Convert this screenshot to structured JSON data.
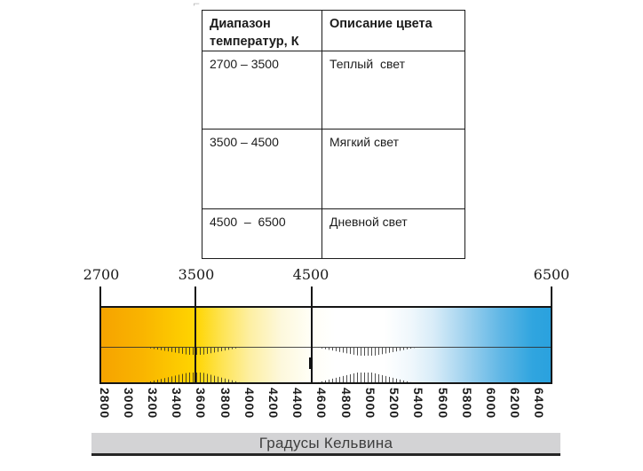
{
  "table": {
    "header": {
      "col1": "Диапазон температур, К",
      "col2": "Описание цвета"
    },
    "rows": [
      {
        "range": "2700 – 3500",
        "description": "Теплый  свет"
      },
      {
        "range": "3500 – 4500",
        "description": "Мягкий свет"
      },
      {
        "range": "4500  –  6500",
        "description": "Дневной свет"
      }
    ]
  },
  "scale": {
    "top_labels": [
      "2700",
      "3500",
      "4500",
      "6500"
    ],
    "bottom_labels": [
      "2800",
      "3000",
      "3200",
      "3400",
      "3600",
      "3800",
      "4000",
      "4200",
      "4400",
      "4600",
      "4800",
      "5000",
      "5200",
      "5400",
      "5600",
      "5800",
      "6000",
      "6200",
      "6400"
    ],
    "footer_label": "Градусы Кельвина"
  },
  "artifact_mark": "⌐",
  "chart_data": {
    "type": "heatmap",
    "title": "Градусы Кельвина",
    "axis_kelvin": {
      "min": 2700,
      "max": 6500,
      "tick_step": 200
    },
    "boundary_ticks": [
      2700,
      3500,
      4500,
      6500
    ],
    "zones": [
      {
        "range_k": [
          2700,
          3500
        ],
        "label": "Теплый свет"
      },
      {
        "range_k": [
          3500,
          4500
        ],
        "label": "Мягкий свет"
      },
      {
        "range_k": [
          4500,
          6500
        ],
        "label": "Дневной свет"
      }
    ],
    "gradient_stops": [
      {
        "kelvin": 2700,
        "color": "#F6A300"
      },
      {
        "kelvin": 3500,
        "color": "#FFD500"
      },
      {
        "kelvin": 4200,
        "color": "#FDF8DC"
      },
      {
        "kelvin": 4700,
        "color": "#FFFFFF"
      },
      {
        "kelvin": 5200,
        "color": "#FFFFFF"
      },
      {
        "kelvin": 5700,
        "color": "#A9D6F0"
      },
      {
        "kelvin": 6500,
        "color": "#2AA1DE"
      }
    ]
  }
}
